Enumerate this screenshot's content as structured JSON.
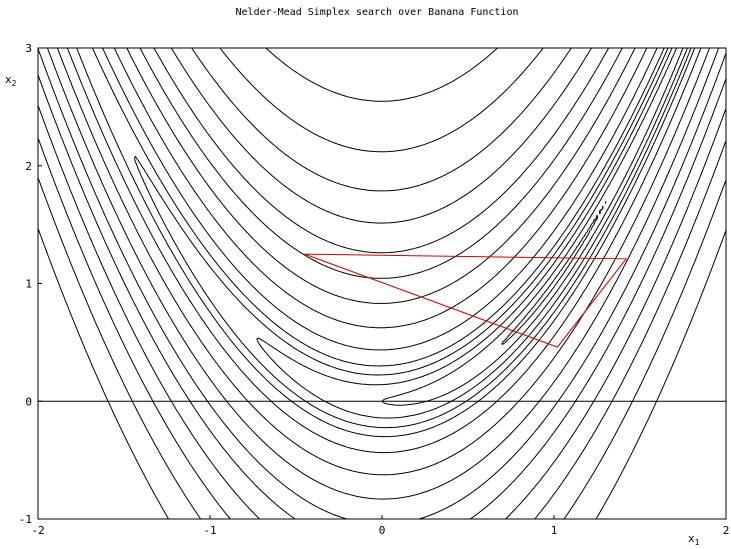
{
  "chart_data": {
    "type": "contour",
    "title": "Nelder-Mead Simplex search over Banana Function",
    "xlabel": "x",
    "xlabel_sub": "1",
    "ylabel": "x",
    "ylabel_sub": "2",
    "xlim": [
      -2,
      2
    ],
    "ylim": [
      -1,
      3
    ],
    "x_ticks": [
      -2,
      -1,
      0,
      1,
      2
    ],
    "y_ticks": [
      -1,
      0,
      1,
      2,
      3
    ],
    "zero_line_y": 0,
    "function": "rosenbrock",
    "contour_levels": [
      0.1,
      1,
      3,
      6,
      10,
      20,
      40,
      70,
      110,
      160,
      230,
      320,
      450,
      650
    ],
    "simplex": {
      "color": "#d40000",
      "vertices": [
        [
          -0.45,
          1.25
        ],
        [
          1.42,
          1.21
        ],
        [
          1.02,
          0.46
        ]
      ]
    },
    "colors": {
      "contour": "#000000",
      "axes": "#000000"
    }
  }
}
